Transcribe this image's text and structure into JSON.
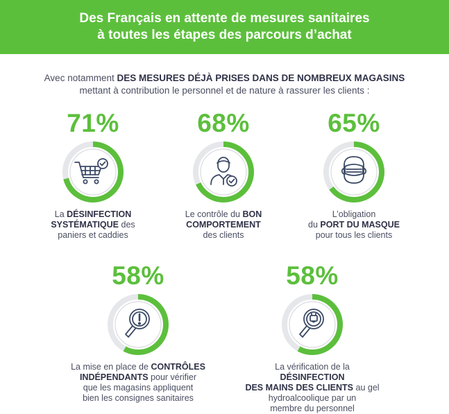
{
  "header": {
    "line1": "Des Français en attente de mesures sanitaires",
    "line2": "à toutes les étapes des parcours d’achat"
  },
  "intro": {
    "lead": "Avec notamment ",
    "bold": "DES MESURES DÉJÀ PRISES DANS DE NOMBREUX MAGASINS",
    "line2": "mettant à contribution le personnel et de nature à rassurer les clients :"
  },
  "colors": {
    "accent": "#5cbf3c",
    "ring_track": "#e6e7ea",
    "icon": "#3c4a66",
    "text": "#3c3f4f"
  },
  "stats": [
    {
      "value": "71%",
      "fraction": 0.71,
      "icon": "shopping-cart-check-icon",
      "caption": [
        [
          {
            "t": "La ",
            "b": false
          },
          {
            "t": "DÉSINFECTION",
            "b": true
          }
        ],
        [
          {
            "t": "SYSTÉMATIQUE",
            "b": true
          },
          {
            "t": " des",
            "b": false
          }
        ],
        [
          {
            "t": "paniers et caddies",
            "b": false
          }
        ]
      ]
    },
    {
      "value": "68%",
      "fraction": 0.68,
      "icon": "staff-person-check-icon",
      "caption": [
        [
          {
            "t": "Le contrôle du ",
            "b": false
          },
          {
            "t": "BON",
            "b": true
          }
        ],
        [
          {
            "t": "COMPORTEMENT",
            "b": true
          }
        ],
        [
          {
            "t": "des clients",
            "b": false
          }
        ]
      ]
    },
    {
      "value": "65%",
      "fraction": 0.65,
      "icon": "face-mask-icon",
      "caption": [
        [
          {
            "t": "L’obligation",
            "b": false
          }
        ],
        [
          {
            "t": "du ",
            "b": false
          },
          {
            "t": "PORT DU MASQUE",
            "b": true
          }
        ],
        [
          {
            "t": "pour tous les clients",
            "b": false
          }
        ]
      ]
    },
    {
      "value": "58%",
      "fraction": 0.58,
      "icon": "magnifier-alert-icon",
      "caption": [
        [
          {
            "t": "La mise en place de ",
            "b": false
          },
          {
            "t": "CONTRÔLES",
            "b": true
          }
        ],
        [
          {
            "t": "INDÉPENDANTS",
            "b": true
          },
          {
            "t": " pour vérifier",
            "b": false
          }
        ],
        [
          {
            "t": "que les magasins appliquent",
            "b": false
          }
        ],
        [
          {
            "t": "bien les consignes sanitaires",
            "b": false
          }
        ]
      ]
    },
    {
      "value": "58%",
      "fraction": 0.58,
      "icon": "magnifier-sanitizer-icon",
      "caption": [
        [
          {
            "t": "La vérification de la ",
            "b": false
          },
          {
            "t": "DÉSINFECTION",
            "b": true
          }
        ],
        [
          {
            "t": "DES MAINS DES CLIENTS",
            "b": true
          },
          {
            "t": " au gel",
            "b": false
          }
        ],
        [
          {
            "t": "hydroalcoolique par un",
            "b": false
          }
        ],
        [
          {
            "t": "membre du personnel",
            "b": false
          }
        ]
      ]
    }
  ]
}
